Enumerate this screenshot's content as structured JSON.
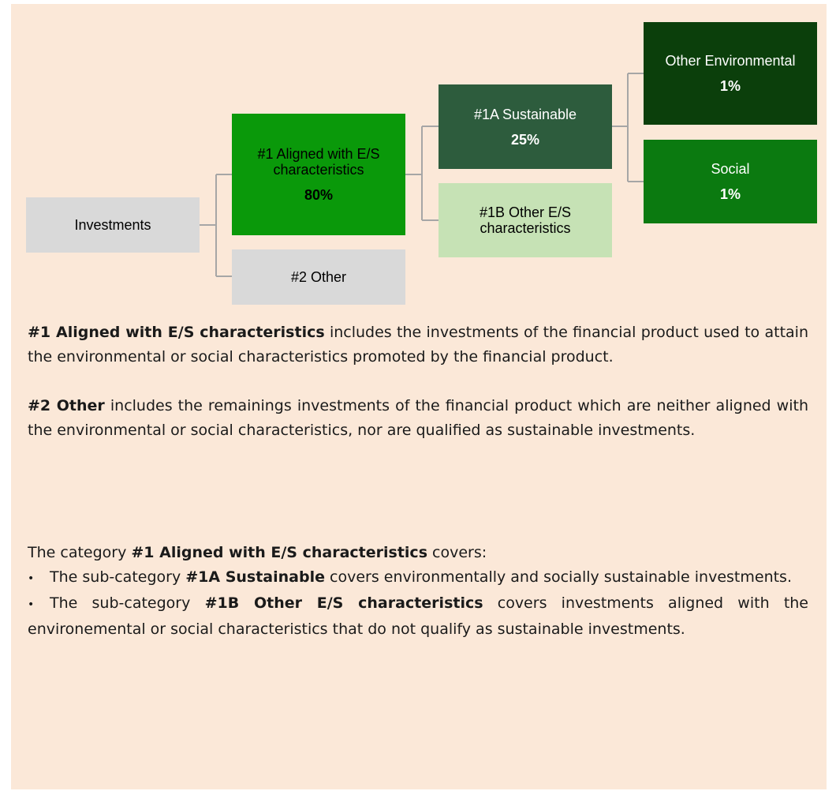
{
  "diagram": {
    "nodes": [
      {
        "label": "Investments"
      },
      {
        "label": "#1 Aligned with E/S characteristics",
        "value": "80%"
      },
      {
        "label": "#2 Other"
      },
      {
        "label": "#1A Sustainable",
        "value": "25%"
      },
      {
        "label": "#1B Other E/S characteristics"
      },
      {
        "label": "Other Environmental",
        "value": "1%"
      },
      {
        "label": "Social",
        "value": "1%"
      }
    ]
  },
  "text": {
    "paragraphs": [
      {
        "bold": "#1 Aligned with E/S characteristics",
        "text": " includes the investments of the financial product used to attain the environmental or social characteristics promoted by the financial product."
      },
      {
        "bold": "#2 Other",
        "text": " includes the remainings investments of the financial product which are neither aligned with the environmental or social characteristics, nor are qualified as sustainable investments."
      }
    ],
    "intro": {
      "prefix": "The category ",
      "bold": "#1 Aligned with E/S characteristics",
      "suffix": " covers:"
    },
    "bullets": [
      {
        "prefix": "The sub-category ",
        "bold": "#1A Sustainable",
        "suffix": " covers environmentally and socially sustainable investments."
      },
      {
        "prefix": "The sub-category ",
        "bold": "#1B Other E/S characteristics",
        "suffix": " covers investments aligned with the environemental or social characteristics that do not qualify as sustainable investments."
      }
    ]
  }
}
